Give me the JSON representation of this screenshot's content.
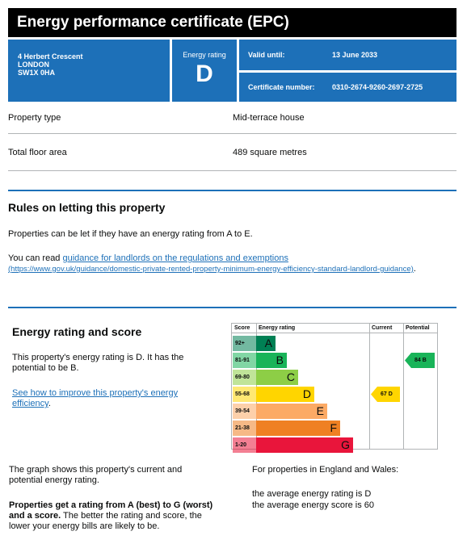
{
  "header": {
    "title": "Energy performance certificate (EPC)"
  },
  "address": {
    "line1": "4 Herbert Crescent",
    "line2": "LONDON",
    "line3": "SW1X 0HA"
  },
  "rating_box": {
    "label": "Energy rating",
    "value": "D"
  },
  "valid": {
    "label": "Valid until:",
    "value": "13 June 2033"
  },
  "certificate": {
    "label": "Certificate number:",
    "value": "0310-2674-9260-2697-2725"
  },
  "details": {
    "property_type_label": "Property type",
    "property_type_value": "Mid-terrace house",
    "floor_area_label": "Total floor area",
    "floor_area_value": "489 square metres"
  },
  "rules": {
    "heading": "Rules on letting this property",
    "p1": "Properties can be let if they have an energy rating from A to E.",
    "p2_prefix": "You can read ",
    "link_text": "guidance for landlords on the regulations and exemptions",
    "link_url": "(https://www.gov.uk/guidance/domestic-private-rented-property-minimum-energy-efficiency-standard-landlord-guidance)",
    "p2_suffix": "."
  },
  "energy": {
    "heading": "Energy rating and score",
    "p1": "This property's energy rating is D. It has the potential to be B.",
    "link": "See how to improve this property's energy efficiency",
    "link_suffix": "."
  },
  "chart_data": {
    "type": "bar",
    "headers": {
      "score": "Score",
      "rating": "Energy rating",
      "current": "Current",
      "potential": "Potential"
    },
    "bands": [
      {
        "range": "92+",
        "letter": "A",
        "color": "#008054"
      },
      {
        "range": "81-91",
        "letter": "B",
        "color": "#19b459"
      },
      {
        "range": "69-80",
        "letter": "C",
        "color": "#8dce46"
      },
      {
        "range": "55-68",
        "letter": "D",
        "color": "#ffd500"
      },
      {
        "range": "39-54",
        "letter": "E",
        "color": "#fcaa65"
      },
      {
        "range": "21-38",
        "letter": "F",
        "color": "#ef8023"
      },
      {
        "range": "1-20",
        "letter": "G",
        "color": "#e9153b"
      }
    ],
    "current": {
      "score": 67,
      "letter": "D",
      "label": "67  D",
      "color": "#ffd500"
    },
    "potential": {
      "score": 84,
      "letter": "B",
      "label": "84  B",
      "color": "#19b459"
    }
  },
  "footer": {
    "graph_text": "The graph shows this property's current and potential energy rating.",
    "bold_text": "Properties get a rating from A (best) to G (worst) and a score.",
    "rest_text": " The better the rating and score, the lower your energy bills are likely to be.",
    "england_wales": "For properties in England and Wales:",
    "avg_rating": "the average energy rating is D",
    "avg_score": "the average energy score is 60"
  }
}
